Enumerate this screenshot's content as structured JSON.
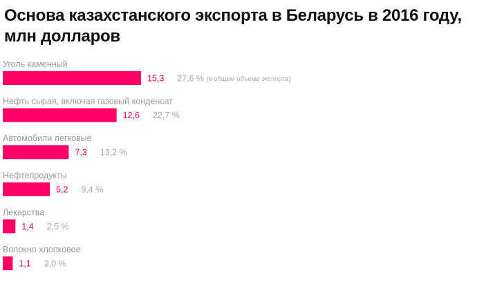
{
  "chart_data": {
    "type": "bar",
    "orientation": "horizontal",
    "title": "Основа казахстанского экспорта в Беларусь в 2016 году, млн долларов",
    "categories": [
      "Уголь каменный",
      "Нефть сырая, включая газовый конденсат",
      "Автомобили легковые",
      "Нефтепродукты",
      "Лекарства",
      "Волокно хлопковое"
    ],
    "values": [
      15.3,
      12.6,
      7.3,
      5.2,
      1.4,
      1.1
    ],
    "value_labels": [
      "15,3",
      "12,6",
      "7,3",
      "5,2",
      "1,4",
      "1,1"
    ],
    "share_labels": [
      "27,6 %",
      "22,7 %",
      "13,2 %",
      "9,4 %",
      "2,5 %",
      "2,0 %"
    ],
    "share_note": "(в общем объеме экспорта)",
    "grid": false,
    "legend": "none",
    "colors": {
      "bar": "#ff0066",
      "value_text": "#e6005c",
      "label_text": "#9a9a9a",
      "title_text": "#111111"
    }
  }
}
